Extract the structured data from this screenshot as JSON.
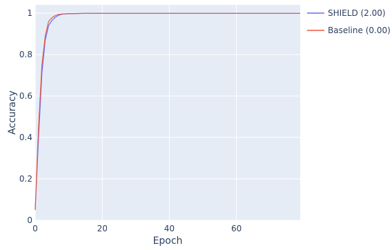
{
  "chart_data": {
    "type": "line",
    "xlabel": "Epoch",
    "ylabel": "Accuracy",
    "xlim": [
      0,
      79
    ],
    "ylim": [
      0,
      1.04
    ],
    "x_ticks": [
      0,
      20,
      40,
      60
    ],
    "y_ticks": [
      0,
      0.2,
      0.4,
      0.6,
      0.8,
      1
    ],
    "x_tick_labels": [
      "0",
      "20",
      "40",
      "60"
    ],
    "y_tick_labels": [
      "0",
      "0.2",
      "0.4",
      "0.6",
      "0.8",
      "1"
    ],
    "grid": true,
    "legend_position": "right",
    "background": "#e5ecf6",
    "series": [
      {
        "name": "SHIELD (2.00)",
        "color": "#636efa",
        "x": [
          0,
          1,
          2,
          3,
          4,
          5,
          6,
          7,
          8,
          10,
          12,
          15,
          20,
          30,
          40,
          50,
          60,
          70,
          79
        ],
        "y": [
          0.05,
          0.4,
          0.71,
          0.87,
          0.94,
          0.965,
          0.98,
          0.99,
          0.995,
          0.997,
          0.998,
          0.999,
          0.999,
          0.999,
          0.999,
          0.999,
          0.999,
          0.999,
          0.999
        ]
      },
      {
        "name": "Baseline (0.00)",
        "color": "#ef553b",
        "x": [
          0,
          1,
          2,
          3,
          4,
          5,
          6,
          7,
          8,
          10,
          12,
          15,
          20,
          30,
          40,
          50,
          60,
          70,
          79
        ],
        "y": [
          0.05,
          0.45,
          0.75,
          0.89,
          0.96,
          0.978,
          0.988,
          0.994,
          0.996,
          0.998,
          0.998,
          0.999,
          0.999,
          0.999,
          0.999,
          0.999,
          0.999,
          0.999,
          0.999
        ]
      }
    ]
  }
}
